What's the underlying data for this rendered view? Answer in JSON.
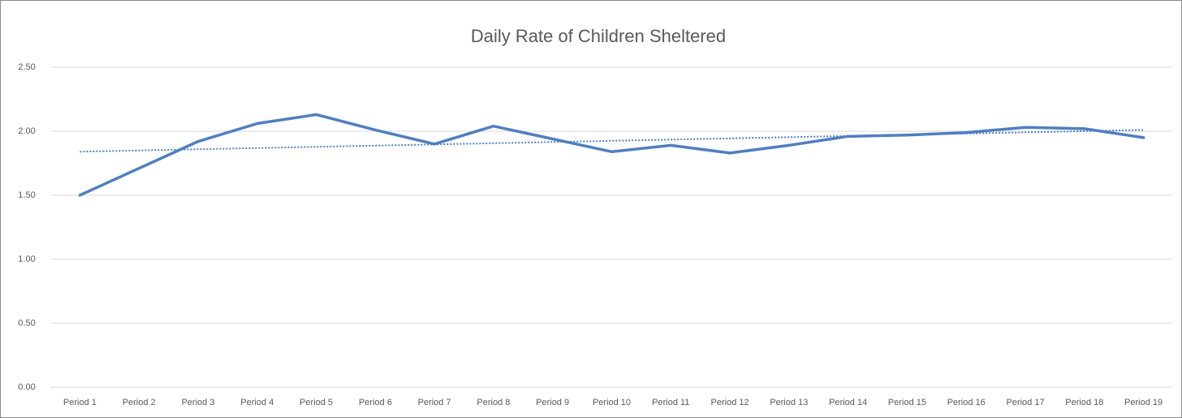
{
  "chart_data": {
    "type": "line",
    "title": "Daily Rate of Children Sheltered",
    "categories": [
      "Period 1",
      "Period 2",
      "Period 3",
      "Period 4",
      "Period 5",
      "Period 6",
      "Period 7",
      "Period 8",
      "Period 9",
      "Period 10",
      "Period 11",
      "Period 12",
      "Period 13",
      "Period 14",
      "Period 15",
      "Period 16",
      "Period 17",
      "Period 18",
      "Period 19"
    ],
    "series": [
      {
        "color": "#4f7fc0",
        "values": [
          1.5,
          1.71,
          1.92,
          2.06,
          2.13,
          2.01,
          1.9,
          2.04,
          1.94,
          1.84,
          1.89,
          1.83,
          1.89,
          1.96,
          1.97,
          1.99,
          2.03,
          2.02,
          1.95
        ]
      }
    ],
    "trendline": "linear",
    "ylim": [
      0,
      2.5
    ],
    "yticks": [
      {
        "value": 0,
        "label": "0.00"
      },
      {
        "value": 0.5,
        "label": "0.50"
      },
      {
        "value": 1,
        "label": "1.00"
      },
      {
        "value": 1.5,
        "label": "1.50"
      },
      {
        "value": 2,
        "label": "2.00"
      },
      {
        "value": 2.5,
        "label": "2.50"
      }
    ],
    "grid": true
  }
}
